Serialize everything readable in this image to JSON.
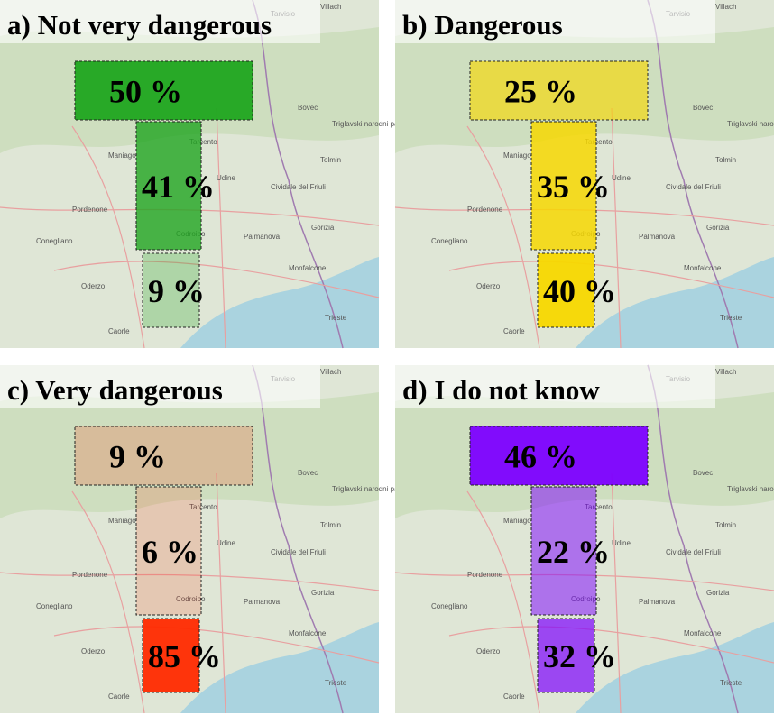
{
  "panels": [
    {
      "title": "a) Not very dangerous",
      "color": "#1fa51f",
      "zones": [
        {
          "label": "50 %",
          "value": 50
        },
        {
          "label": "41 %",
          "value": 41
        },
        {
          "label": "9 %",
          "value": 9
        }
      ]
    },
    {
      "title": "b) Dangerous",
      "color": "#f7d800",
      "zones": [
        {
          "label": "25 %",
          "value": 25
        },
        {
          "label": "35 %",
          "value": 35
        },
        {
          "label": "40 %",
          "value": 40
        }
      ]
    },
    {
      "title": "c) Very dangerous",
      "color": "#ff2a00",
      "zones": [
        {
          "label": "9 %",
          "value": 9
        },
        {
          "label": "6 %",
          "value": 6
        },
        {
          "label": "85 %",
          "value": 85
        }
      ]
    },
    {
      "title": "d) I do not know",
      "color": "#7c00ff",
      "zones": [
        {
          "label": "46 %",
          "value": 46
        },
        {
          "label": "22 %",
          "value": 22
        },
        {
          "label": "32 %",
          "value": 32
        }
      ]
    }
  ],
  "map": {
    "places": [
      "Villach",
      "Tarvisio",
      "Bovec",
      "Tolmin",
      "Tarcento",
      "Maniago",
      "Udine",
      "Cividale del Friuli",
      "Pordenone",
      "Codroipo",
      "Palmanova",
      "Gorizia",
      "Monfalcone",
      "Trieste",
      "Caorle",
      "Conegliano",
      "Oderzo",
      "Triglavski narodni park"
    ]
  }
}
